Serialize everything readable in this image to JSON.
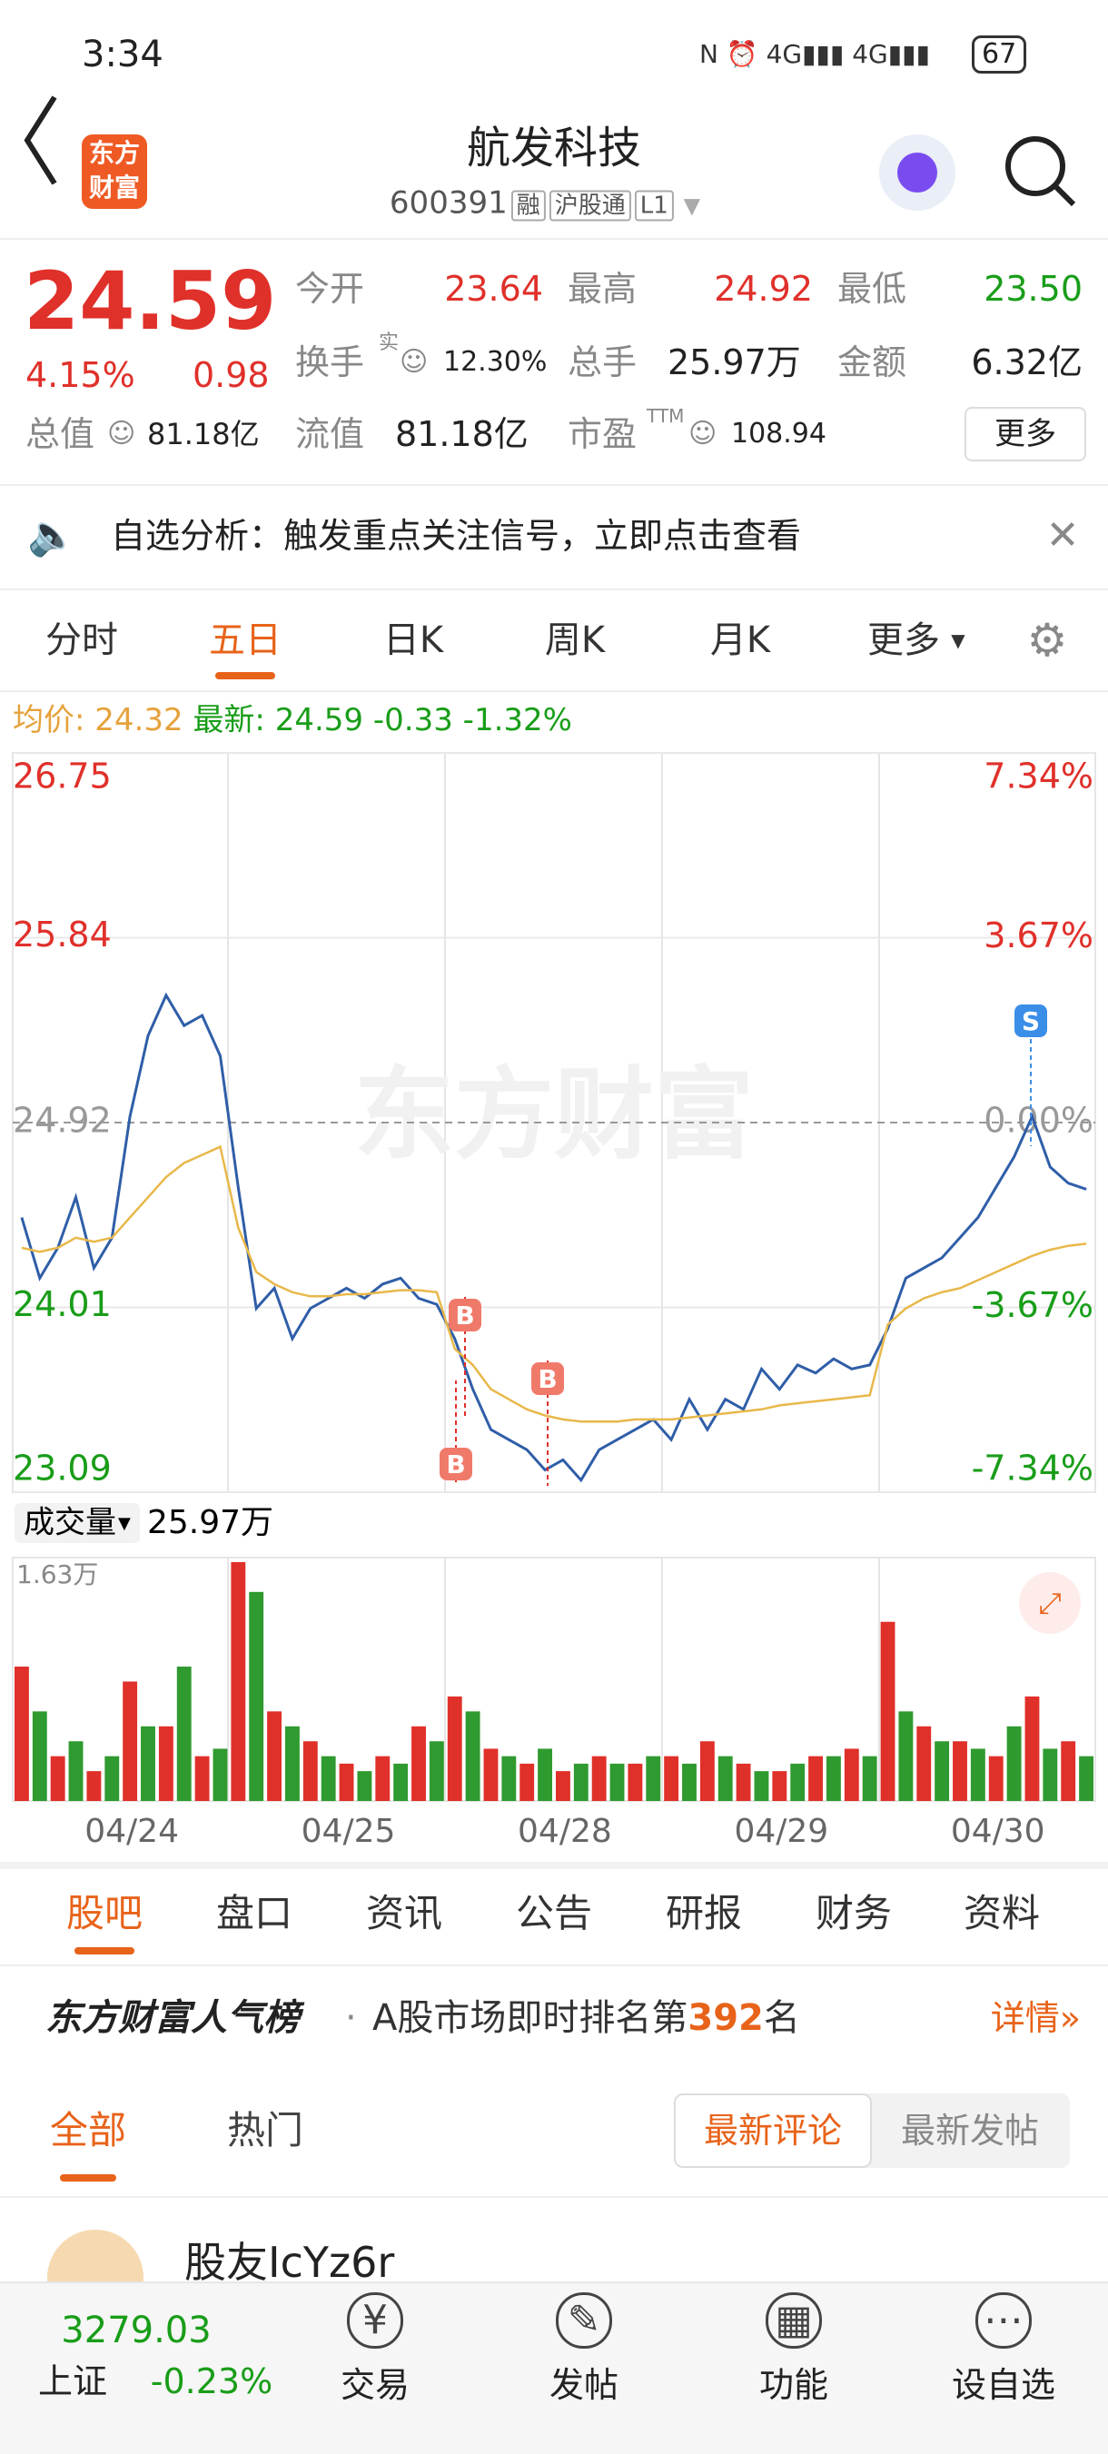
{
  "status_bar": {
    "time": "3:34",
    "battery": "67"
  },
  "header": {
    "logo": "东方财富",
    "title": "航发科技",
    "code": "600391",
    "tags": [
      "融",
      "沪股通",
      "L1"
    ]
  },
  "quote": {
    "price": "24.59",
    "change_pct": "4.15%",
    "change": "0.98",
    "open_label": "今开",
    "open": "23.64",
    "high_label": "最高",
    "high": "24.92",
    "low_label": "最低",
    "low": "23.50",
    "turnover_label": "换手",
    "turnover_sup": "实",
    "turnover": "12.30%",
    "volume_label": "总手",
    "volume": "25.97万",
    "amount_label": "金额",
    "amount": "6.32亿",
    "mcap_label": "总值",
    "mcap": "81.18亿",
    "float_label": "流值",
    "float": "81.18亿",
    "pe_label": "市盈",
    "pe_sup": "TTM",
    "pe": "108.94",
    "more": "更多"
  },
  "notice": "自选分析：触发重点关注信号，立即点击查看",
  "chart_tabs": [
    "分时",
    "五日",
    "日K",
    "周K",
    "月K",
    "更多"
  ],
  "legend": {
    "avg_label": "均价:",
    "avg": "24.32",
    "latest_label": "最新:",
    "latest": "24.59",
    "change": "-0.33",
    "change_pct": "-1.32%"
  },
  "chart_data": [
    {
      "type": "line",
      "watermark": "东方财富",
      "trade_marks": [
        "B",
        "B",
        "B",
        "S"
      ],
      "ylim": [
        23.09,
        26.75
      ],
      "yticks": [
        26.75,
        25.84,
        24.92,
        24.01,
        23.09
      ],
      "y2lim": [
        -7.34,
        7.34
      ],
      "y2ticks": [
        {
          "value": 7.34,
          "label": "7.34%"
        },
        {
          "value": 3.67,
          "label": "3.67%"
        },
        {
          "value": 0,
          "label": "0.00%"
        },
        {
          "value": -3.67,
          "label": "-3.67%"
        },
        {
          "value": -7.34,
          "label": "-7.34%"
        }
      ],
      "series": [
        {
          "name": "最新",
          "color": "#2f5ea8",
          "values": [
            24.45,
            24.15,
            24.3,
            24.55,
            24.2,
            24.35,
            24.95,
            25.35,
            25.55,
            25.4,
            25.45,
            25.25,
            24.6,
            24.0,
            24.1,
            23.85,
            24.0,
            24.05,
            24.1,
            24.05,
            24.12,
            24.15,
            24.05,
            24.02,
            23.85,
            23.6,
            23.4,
            23.35,
            23.3,
            23.2,
            23.25,
            23.15,
            23.3,
            23.35,
            23.4,
            23.45,
            23.35,
            23.55,
            23.4,
            23.55,
            23.5,
            23.7,
            23.6,
            23.72,
            23.68,
            23.75,
            23.7,
            23.72,
            23.9,
            24.15,
            24.2,
            24.25,
            24.35,
            24.45,
            24.6,
            24.75,
            24.95,
            24.7,
            24.62,
            24.59
          ]
        },
        {
          "name": "均价",
          "color": "#e8b84a",
          "values": [
            24.3,
            24.28,
            24.3,
            24.35,
            24.33,
            24.35,
            24.45,
            24.55,
            24.65,
            24.72,
            24.76,
            24.8,
            24.4,
            24.18,
            24.12,
            24.08,
            24.06,
            24.06,
            24.07,
            24.07,
            24.08,
            24.09,
            24.09,
            24.08,
            23.8,
            23.72,
            23.6,
            23.55,
            23.5,
            23.47,
            23.45,
            23.44,
            23.44,
            23.44,
            23.45,
            23.45,
            23.45,
            23.46,
            23.47,
            23.48,
            23.49,
            23.5,
            23.52,
            23.53,
            23.54,
            23.55,
            23.56,
            23.57,
            23.92,
            24.0,
            24.05,
            24.08,
            24.1,
            24.14,
            24.18,
            24.22,
            24.26,
            24.29,
            24.31,
            24.32
          ]
        }
      ]
    },
    {
      "type": "bar",
      "label": "成交量",
      "total": "25.97万",
      "days": [
        "04/24",
        "04/25",
        "04/28",
        "04/29",
        "04/30"
      ],
      "ylim": [
        0,
        16300
      ],
      "yticks": [
        {
          "value": 16300,
          "label": "1.63万"
        }
      ],
      "series": [
        {
          "color": "#e0302a",
          "values": [
            9000,
            3000,
            2000,
            8000,
            5000,
            3000,
            16000,
            6000,
            4000,
            2500,
            3000,
            5000,
            7000,
            3500,
            2500,
            2000,
            3000,
            2500,
            3000,
            4000,
            2500,
            2000,
            3000,
            3500,
            12000,
            5000,
            4000,
            3000,
            7000,
            4000
          ]
        },
        {
          "color": "#2f9a2f",
          "values": [
            6000,
            4000,
            3000,
            5000,
            9000,
            3500,
            14000,
            5000,
            3000,
            2000,
            2500,
            4000,
            6000,
            3000,
            3500,
            2500,
            2500,
            3000,
            2500,
            3000,
            2000,
            2500,
            3000,
            3000,
            6000,
            4000,
            3500,
            5000,
            3500,
            3000
          ]
        }
      ]
    }
  ],
  "section_tabs": [
    "股吧",
    "盘口",
    "资讯",
    "公告",
    "研报",
    "财务",
    "资料"
  ],
  "rank": {
    "title": "东方财富人气榜",
    "text": "A股市场即时排名第",
    "rank": "392",
    "suffix": "名",
    "link": "详情»"
  },
  "post_tabs": [
    "全部",
    "热门"
  ],
  "sort_tabs": [
    "最新评论",
    "最新发帖"
  ],
  "post": {
    "user": "股友IcYz6r"
  },
  "bottom_bar": {
    "index_value": "3279.03",
    "index_name": "上证",
    "index_change": "-0.23%",
    "items": [
      "交易",
      "发帖",
      "功能",
      "设自选"
    ]
  }
}
